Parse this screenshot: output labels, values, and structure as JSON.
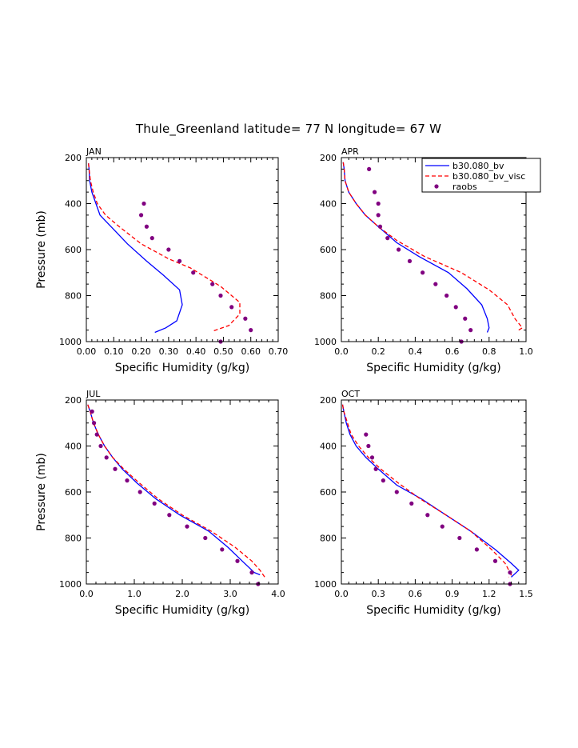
{
  "title": "Thule_Greenland  latitude= 77 N longitude= 67 W",
  "legend": {
    "entries": [
      {
        "label": "b30.080_bv",
        "style": "solid",
        "color": "#0000ff"
      },
      {
        "label": "b30.080_bv_visc",
        "style": "dashed",
        "color": "#ff0000"
      },
      {
        "label": "raobs",
        "style": "dots",
        "color": "#800080"
      }
    ]
  },
  "colors": {
    "model": "#0000ff",
    "visc": "#ff0000",
    "raobs": "#800080"
  },
  "chart_data": [
    {
      "type": "line",
      "panel": "JAN",
      "xlabel": "Specific Humidity (g/kg)",
      "ylabel": "Pressure (mb)",
      "xlim": [
        0,
        0.7
      ],
      "ylim": [
        200,
        1000
      ],
      "xticks": [
        0,
        0.1,
        0.2,
        0.3,
        0.4,
        0.5,
        0.6,
        0.7
      ],
      "xtick_labels": [
        "0.00",
        "0.10",
        "0.20",
        "0.30",
        "0.40",
        "0.50",
        "0.60",
        "0.70"
      ],
      "yticks": [
        200,
        400,
        600,
        800,
        1000
      ],
      "ytick_labels": [
        "200",
        "400",
        "600",
        "800",
        "1000"
      ],
      "series": [
        {
          "name": "b30.080_bv",
          "style": "solid",
          "points": [
            [
              0.008,
              225
            ],
            [
              0.01,
              250
            ],
            [
              0.012,
              300
            ],
            [
              0.02,
              350
            ],
            [
              0.035,
              400
            ],
            [
              0.05,
              450
            ],
            [
              0.09,
              500
            ],
            [
              0.15,
              575
            ],
            [
              0.22,
              650
            ],
            [
              0.28,
              710
            ],
            [
              0.34,
              775
            ],
            [
              0.35,
              840
            ],
            [
              0.33,
              910
            ],
            [
              0.29,
              940
            ],
            [
              0.25,
              960
            ]
          ]
        },
        {
          "name": "b30.080_bv_visc",
          "style": "dashed",
          "points": [
            [
              0.008,
              225
            ],
            [
              0.01,
              250
            ],
            [
              0.015,
              300
            ],
            [
              0.025,
              350
            ],
            [
              0.04,
              400
            ],
            [
              0.07,
              450
            ],
            [
              0.12,
              500
            ],
            [
              0.2,
              575
            ],
            [
              0.3,
              640
            ],
            [
              0.38,
              680
            ],
            [
              0.49,
              760
            ],
            [
              0.56,
              830
            ],
            [
              0.56,
              880
            ],
            [
              0.52,
              930
            ],
            [
              0.46,
              955
            ]
          ]
        },
        {
          "name": "raobs",
          "style": "dots",
          "points": [
            [
              0.21,
              400
            ],
            [
              0.2,
              450
            ],
            [
              0.22,
              500
            ],
            [
              0.24,
              550
            ],
            [
              0.3,
              600
            ],
            [
              0.34,
              650
            ],
            [
              0.39,
              700
            ],
            [
              0.46,
              750
            ],
            [
              0.49,
              800
            ],
            [
              0.53,
              850
            ],
            [
              0.58,
              900
            ],
            [
              0.6,
              950
            ],
            [
              0.49,
              1000
            ]
          ]
        }
      ]
    },
    {
      "type": "line",
      "panel": "APR",
      "xlabel": "Specific Humidity (g/kg)",
      "ylabel": "",
      "xlim": [
        0,
        1.0
      ],
      "ylim": [
        200,
        1000
      ],
      "xticks": [
        0,
        0.2,
        0.4,
        0.6,
        0.8,
        1.0
      ],
      "xtick_labels": [
        "0.0",
        "0.2",
        "0.4",
        "0.6",
        "0.8",
        "1.0"
      ],
      "yticks": [
        200,
        400,
        600,
        800,
        1000
      ],
      "ytick_labels": [
        "200",
        "400",
        "600",
        "800",
        "1000"
      ],
      "series": [
        {
          "name": "b30.080_bv",
          "style": "solid",
          "points": [
            [
              0.01,
              220
            ],
            [
              0.015,
              250
            ],
            [
              0.02,
              300
            ],
            [
              0.04,
              350
            ],
            [
              0.08,
              400
            ],
            [
              0.13,
              450
            ],
            [
              0.2,
              500
            ],
            [
              0.3,
              570
            ],
            [
              0.42,
              630
            ],
            [
              0.58,
              700
            ],
            [
              0.68,
              770
            ],
            [
              0.76,
              840
            ],
            [
              0.79,
              900
            ],
            [
              0.8,
              940
            ],
            [
              0.79,
              960
            ]
          ]
        },
        {
          "name": "b30.080_bv_visc",
          "style": "dashed",
          "points": [
            [
              0.01,
              220
            ],
            [
              0.015,
              250
            ],
            [
              0.02,
              300
            ],
            [
              0.04,
              350
            ],
            [
              0.08,
              400
            ],
            [
              0.13,
              450
            ],
            [
              0.2,
              500
            ],
            [
              0.3,
              560
            ],
            [
              0.45,
              630
            ],
            [
              0.65,
              700
            ],
            [
              0.8,
              775
            ],
            [
              0.9,
              840
            ],
            [
              0.94,
              900
            ],
            [
              0.98,
              940
            ],
            [
              0.96,
              950
            ]
          ]
        },
        {
          "name": "raobs",
          "style": "dots",
          "points": [
            [
              0.15,
              250
            ],
            [
              0.18,
              350
            ],
            [
              0.2,
              400
            ],
            [
              0.2,
              450
            ],
            [
              0.21,
              500
            ],
            [
              0.25,
              550
            ],
            [
              0.31,
              600
            ],
            [
              0.37,
              650
            ],
            [
              0.44,
              700
            ],
            [
              0.51,
              750
            ],
            [
              0.57,
              800
            ],
            [
              0.62,
              850
            ],
            [
              0.67,
              900
            ],
            [
              0.7,
              950
            ],
            [
              0.65,
              1000
            ]
          ]
        }
      ]
    },
    {
      "type": "line",
      "panel": "JUL",
      "xlabel": "Specific Humidity (g/kg)",
      "ylabel": "Pressure (mb)",
      "xlim": [
        0,
        4.0
      ],
      "ylim": [
        200,
        1000
      ],
      "xticks": [
        0,
        1,
        2,
        3,
        4
      ],
      "xtick_labels": [
        "0.0",
        "1.0",
        "2.0",
        "3.0",
        "4.0"
      ],
      "yticks": [
        200,
        400,
        600,
        800,
        1000
      ],
      "ytick_labels": [
        "200",
        "400",
        "600",
        "800",
        "1000"
      ],
      "series": [
        {
          "name": "b30.080_bv",
          "style": "solid",
          "points": [
            [
              0.03,
              220
            ],
            [
              0.08,
              250
            ],
            [
              0.15,
              300
            ],
            [
              0.25,
              350
            ],
            [
              0.38,
              400
            ],
            [
              0.55,
              450
            ],
            [
              0.75,
              500
            ],
            [
              1.05,
              560
            ],
            [
              1.45,
              630
            ],
            [
              1.95,
              700
            ],
            [
              2.55,
              770
            ],
            [
              2.95,
              840
            ],
            [
              3.25,
              900
            ],
            [
              3.5,
              950
            ],
            [
              3.62,
              960
            ]
          ]
        },
        {
          "name": "b30.080_bv_visc",
          "style": "dashed",
          "points": [
            [
              0.03,
              220
            ],
            [
              0.08,
              250
            ],
            [
              0.15,
              300
            ],
            [
              0.25,
              350
            ],
            [
              0.38,
              400
            ],
            [
              0.55,
              450
            ],
            [
              0.78,
              500
            ],
            [
              1.1,
              560
            ],
            [
              1.5,
              630
            ],
            [
              2.0,
              700
            ],
            [
              2.6,
              770
            ],
            [
              3.1,
              840
            ],
            [
              3.45,
              900
            ],
            [
              3.62,
              940
            ],
            [
              3.72,
              970
            ]
          ]
        },
        {
          "name": "raobs",
          "style": "dots",
          "points": [
            [
              0.12,
              250
            ],
            [
              0.16,
              300
            ],
            [
              0.22,
              350
            ],
            [
              0.3,
              400
            ],
            [
              0.42,
              450
            ],
            [
              0.6,
              500
            ],
            [
              0.85,
              550
            ],
            [
              1.12,
              600
            ],
            [
              1.42,
              650
            ],
            [
              1.73,
              700
            ],
            [
              2.1,
              750
            ],
            [
              2.48,
              800
            ],
            [
              2.83,
              850
            ],
            [
              3.15,
              900
            ],
            [
              3.45,
              950
            ],
            [
              3.58,
              1000
            ]
          ]
        }
      ]
    },
    {
      "type": "line",
      "panel": "OCT",
      "xlabel": "Specific Humidity (g/kg)",
      "ylabel": "",
      "xlim": [
        0,
        1.5
      ],
      "ylim": [
        200,
        1000
      ],
      "xticks": [
        0,
        0.3,
        0.6,
        0.9,
        1.2,
        1.5
      ],
      "xtick_labels": [
        "0.0",
        "0.3",
        "0.6",
        "0.9",
        "1.2",
        "1.5"
      ],
      "yticks": [
        200,
        400,
        600,
        800,
        1000
      ],
      "ytick_labels": [
        "200",
        "400",
        "600",
        "800",
        "1000"
      ],
      "series": [
        {
          "name": "b30.080_bv",
          "style": "solid",
          "points": [
            [
              0.01,
              220
            ],
            [
              0.02,
              250
            ],
            [
              0.04,
              300
            ],
            [
              0.07,
              350
            ],
            [
              0.12,
              400
            ],
            [
              0.2,
              450
            ],
            [
              0.3,
              500
            ],
            [
              0.45,
              570
            ],
            [
              0.65,
              630
            ],
            [
              0.85,
              700
            ],
            [
              1.05,
              770
            ],
            [
              1.25,
              850
            ],
            [
              1.38,
              910
            ],
            [
              1.44,
              940
            ],
            [
              1.38,
              970
            ]
          ]
        },
        {
          "name": "b30.080_bv_visc",
          "style": "dashed",
          "points": [
            [
              0.01,
              220
            ],
            [
              0.02,
              250
            ],
            [
              0.05,
              300
            ],
            [
              0.08,
              350
            ],
            [
              0.14,
              400
            ],
            [
              0.22,
              450
            ],
            [
              0.32,
              500
            ],
            [
              0.46,
              560
            ],
            [
              0.64,
              630
            ],
            [
              0.85,
              700
            ],
            [
              1.05,
              770
            ],
            [
              1.22,
              850
            ],
            [
              1.33,
              910
            ],
            [
              1.38,
              960
            ],
            [
              1.36,
              970
            ]
          ]
        },
        {
          "name": "raobs",
          "style": "dots",
          "points": [
            [
              0.2,
              350
            ],
            [
              0.22,
              400
            ],
            [
              0.25,
              450
            ],
            [
              0.28,
              500
            ],
            [
              0.34,
              550
            ],
            [
              0.45,
              600
            ],
            [
              0.57,
              650
            ],
            [
              0.7,
              700
            ],
            [
              0.82,
              750
            ],
            [
              0.96,
              800
            ],
            [
              1.1,
              850
            ],
            [
              1.25,
              900
            ],
            [
              1.37,
              950
            ],
            [
              1.37,
              1000
            ]
          ]
        }
      ]
    }
  ]
}
